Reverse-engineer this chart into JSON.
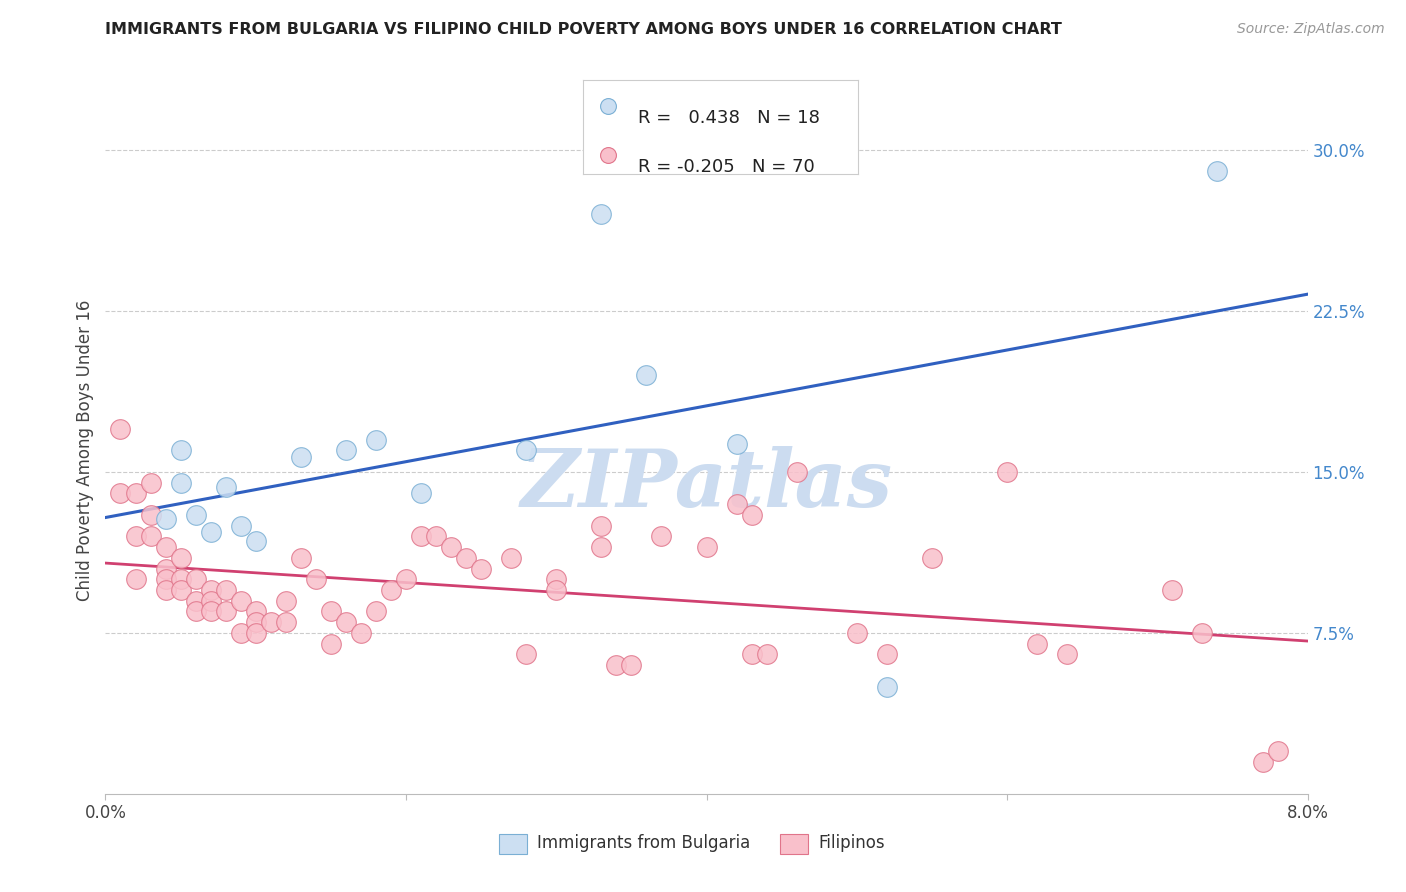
{
  "title": "IMMIGRANTS FROM BULGARIA VS FILIPINO CHILD POVERTY AMONG BOYS UNDER 16 CORRELATION CHART",
  "source": "Source: ZipAtlas.com",
  "ylabel": "Child Poverty Among Boys Under 16",
  "legend_label_1": "Immigrants from Bulgaria",
  "legend_label_2": "Filipinos",
  "R_bulgaria": 0.438,
  "N_bulgaria": 18,
  "R_filipino": -0.205,
  "N_filipino": 70,
  "xlim": [
    0.0,
    0.08
  ],
  "ylim": [
    0.0,
    0.32
  ],
  "x_ticks": [
    0.0,
    0.02,
    0.04,
    0.06,
    0.08
  ],
  "x_tick_labels": [
    "0.0%",
    "",
    "",
    "",
    "8.0%"
  ],
  "y_ticks_right": [
    0.075,
    0.15,
    0.225,
    0.3
  ],
  "y_tick_labels_right": [
    "7.5%",
    "15.0%",
    "22.5%",
    "30.0%"
  ],
  "color_bulgaria_fill": "#ccdff2",
  "color_bulgaria_edge": "#7aafd4",
  "color_filipino_fill": "#f9c0cb",
  "color_filipino_edge": "#e0748a",
  "line_color_bulgaria": "#3060c0",
  "line_color_filipino": "#d04070",
  "watermark": "ZIPatlas",
  "watermark_color": "#ccdcf0",
  "bulgaria_x": [
    0.004,
    0.005,
    0.005,
    0.006,
    0.007,
    0.008,
    0.009,
    0.01,
    0.013,
    0.016,
    0.018,
    0.021,
    0.028,
    0.033,
    0.036,
    0.042,
    0.052,
    0.074
  ],
  "bulgaria_y": [
    0.128,
    0.16,
    0.145,
    0.13,
    0.122,
    0.143,
    0.125,
    0.118,
    0.157,
    0.16,
    0.165,
    0.14,
    0.16,
    0.27,
    0.195,
    0.163,
    0.05,
    0.29
  ],
  "filipino_x": [
    0.001,
    0.001,
    0.002,
    0.002,
    0.002,
    0.003,
    0.003,
    0.003,
    0.004,
    0.004,
    0.004,
    0.004,
    0.005,
    0.005,
    0.005,
    0.006,
    0.006,
    0.006,
    0.007,
    0.007,
    0.007,
    0.008,
    0.008,
    0.009,
    0.009,
    0.01,
    0.01,
    0.01,
    0.011,
    0.012,
    0.012,
    0.013,
    0.014,
    0.015,
    0.015,
    0.016,
    0.017,
    0.018,
    0.019,
    0.02,
    0.021,
    0.022,
    0.023,
    0.024,
    0.025,
    0.027,
    0.028,
    0.03,
    0.03,
    0.033,
    0.033,
    0.034,
    0.035,
    0.037,
    0.04,
    0.042,
    0.043,
    0.043,
    0.044,
    0.046,
    0.05,
    0.052,
    0.055,
    0.06,
    0.062,
    0.064,
    0.071,
    0.073,
    0.077,
    0.078
  ],
  "filipino_y": [
    0.17,
    0.14,
    0.14,
    0.12,
    0.1,
    0.145,
    0.13,
    0.12,
    0.115,
    0.105,
    0.1,
    0.095,
    0.11,
    0.1,
    0.095,
    0.1,
    0.09,
    0.085,
    0.095,
    0.09,
    0.085,
    0.095,
    0.085,
    0.09,
    0.075,
    0.085,
    0.08,
    0.075,
    0.08,
    0.09,
    0.08,
    0.11,
    0.1,
    0.085,
    0.07,
    0.08,
    0.075,
    0.085,
    0.095,
    0.1,
    0.12,
    0.12,
    0.115,
    0.11,
    0.105,
    0.11,
    0.065,
    0.1,
    0.095,
    0.125,
    0.115,
    0.06,
    0.06,
    0.12,
    0.115,
    0.135,
    0.13,
    0.065,
    0.065,
    0.15,
    0.075,
    0.065,
    0.11,
    0.15,
    0.07,
    0.065,
    0.095,
    0.075,
    0.015,
    0.02
  ]
}
